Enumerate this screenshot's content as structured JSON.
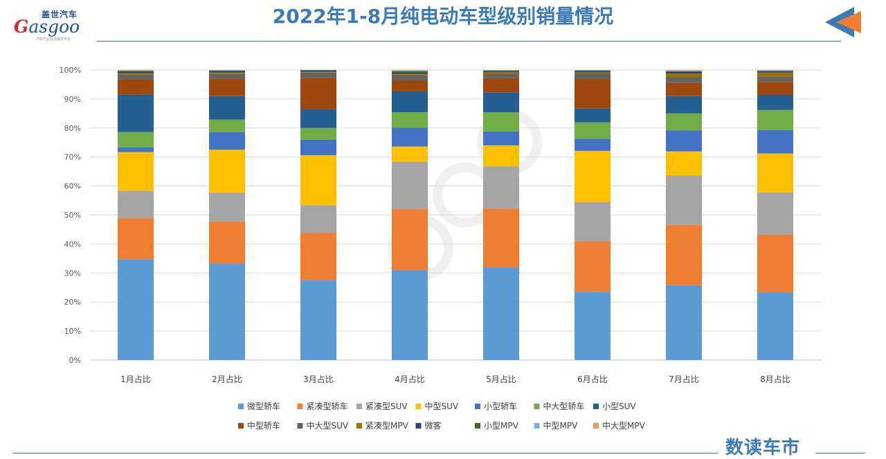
{
  "header": {
    "title": "2022年1-8月纯电动车型级别销量情况",
    "logo_cn": "盖世汽车",
    "logo_en_g": "G",
    "logo_en_rest": "asgoo",
    "logo_tagline": "汽车产业信息服务平台"
  },
  "footer": {
    "brand": "数读车市"
  },
  "colors": {
    "title": "#3a7bb5",
    "rule": "#3a6fa3",
    "arrow_blue": "#3a7bb5",
    "arrow_orange": "#ed7d31"
  },
  "chart_data": {
    "type": "bar",
    "stacked": true,
    "percent": true,
    "title": "",
    "xlabel": "",
    "ylabel": "",
    "ylim": [
      0,
      100
    ],
    "yticks": [
      "0%",
      "10%",
      "20%",
      "30%",
      "40%",
      "50%",
      "60%",
      "70%",
      "80%",
      "90%",
      "100%"
    ],
    "grid": true,
    "legend_position": "bottom",
    "categories": [
      "1月占比",
      "2月占比",
      "3月占比",
      "4月占比",
      "5月占比",
      "6月占比",
      "7月占比",
      "8月占比"
    ],
    "series": [
      {
        "name": "微型轿车",
        "color": "#5b9bd5",
        "values": [
          34.8,
          33.3,
          27.6,
          31.0,
          32.0,
          23.6,
          25.8,
          23.4
        ]
      },
      {
        "name": "紧凑型轿车",
        "color": "#ed7d31",
        "values": [
          14.1,
          14.5,
          16.3,
          21.0,
          20.2,
          17.3,
          20.8,
          19.8
        ]
      },
      {
        "name": "紧凑型SUV",
        "color": "#a5a5a5",
        "values": [
          9.5,
          9.9,
          9.5,
          16.4,
          14.6,
          13.6,
          17.0,
          14.6
        ]
      },
      {
        "name": "中型SUV",
        "color": "#ffc000",
        "values": [
          13.3,
          14.8,
          17.2,
          5.2,
          7.2,
          17.6,
          8.3,
          13.4
        ]
      },
      {
        "name": "小型轿车",
        "color": "#4472c4",
        "values": [
          1.6,
          6.1,
          5.3,
          6.5,
          4.8,
          4.2,
          7.3,
          8.1
        ]
      },
      {
        "name": "中大型轿车",
        "color": "#70ad47",
        "values": [
          5.3,
          4.3,
          4.1,
          5.3,
          6.6,
          5.6,
          5.8,
          6.9
        ]
      },
      {
        "name": "小型SUV",
        "color": "#255e91",
        "values": [
          12.9,
          8.1,
          6.5,
          7.2,
          6.9,
          4.8,
          6.0,
          5.2
        ]
      },
      {
        "name": "中型轿车",
        "color": "#9e480e",
        "values": [
          5.3,
          6.0,
          10.8,
          3.7,
          4.9,
          10.3,
          4.5,
          4.5
        ]
      },
      {
        "name": "中大型SUV",
        "color": "#636363",
        "values": [
          1.6,
          1.6,
          1.8,
          1.8,
          1.5,
          1.8,
          2.0,
          1.8
        ]
      },
      {
        "name": "紧凑型MPV",
        "color": "#997300",
        "values": [
          0.5,
          0.5,
          0.3,
          0.6,
          0.6,
          0.4,
          1.3,
          1.4
        ]
      },
      {
        "name": "微客",
        "color": "#264478",
        "values": [
          0.5,
          0.6,
          0.5,
          0.5,
          0.4,
          0.5,
          0.6,
          0.5
        ]
      },
      {
        "name": "小型MPV",
        "color": "#43682b",
        "values": [
          0.3,
          0.1,
          0.0,
          0.4,
          0.1,
          0.1,
          0.1,
          0.1
        ]
      },
      {
        "name": "中型MPV",
        "color": "#7cafdd",
        "values": [
          0.1,
          0.1,
          0.1,
          0.2,
          0.1,
          0.1,
          0.2,
          0.2
        ]
      },
      {
        "name": "中大型MPV",
        "color": "#f1975a",
        "values": [
          0.2,
          0.1,
          0.0,
          0.2,
          0.1,
          0.1,
          0.3,
          0.1
        ]
      }
    ]
  }
}
